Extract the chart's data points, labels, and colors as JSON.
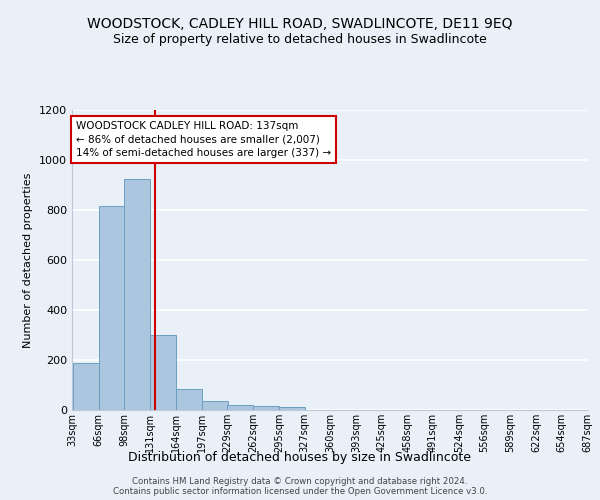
{
  "title": "WOODSTOCK, CADLEY HILL ROAD, SWADLINCOTE, DE11 9EQ",
  "subtitle": "Size of property relative to detached houses in Swadlincote",
  "xlabel": "Distribution of detached houses by size in Swadlincote",
  "ylabel": "Number of detached properties",
  "footnote1": "Contains HM Land Registry data © Crown copyright and database right 2024.",
  "footnote2": "Contains public sector information licensed under the Open Government Licence v3.0.",
  "bar_left_edges": [
    33,
    66,
    98,
    131,
    164,
    197,
    229,
    262,
    295,
    327,
    360,
    393,
    425,
    458,
    491,
    524,
    556,
    589,
    622,
    654
  ],
  "bar_heights": [
    190,
    815,
    925,
    300,
    85,
    38,
    22,
    18,
    12,
    0,
    0,
    0,
    0,
    0,
    0,
    0,
    0,
    0,
    0,
    0
  ],
  "bin_width": 33,
  "bar_color": "#adc6e0",
  "bar_edge_color": "#6a9fc0",
  "tick_labels": [
    "33sqm",
    "66sqm",
    "98sqm",
    "131sqm",
    "164sqm",
    "197sqm",
    "229sqm",
    "262sqm",
    "295sqm",
    "327sqm",
    "360sqm",
    "393sqm",
    "425sqm",
    "458sqm",
    "491sqm",
    "524sqm",
    "556sqm",
    "589sqm",
    "622sqm",
    "654sqm",
    "687sqm"
  ],
  "property_size": 137,
  "red_line_color": "#cc0000",
  "annotation_line1": "WOODSTOCK CADLEY HILL ROAD: 137sqm",
  "annotation_line2": "← 86% of detached houses are smaller (2,007)",
  "annotation_line3": "14% of semi-detached houses are larger (337) →",
  "annotation_box_color": "#ffffff",
  "annotation_border_color": "#cc0000",
  "ylim": [
    0,
    1200
  ],
  "yticks": [
    0,
    200,
    400,
    600,
    800,
    1000,
    1200
  ],
  "bg_color": "#eaf0f8",
  "plot_bg_color": "#eaf0f8",
  "grid_color": "#ffffff",
  "title_fontsize": 10,
  "subtitle_fontsize": 9,
  "ylabel_fontsize": 8,
  "xlabel_fontsize": 9,
  "tick_fontsize": 7,
  "ytick_fontsize": 8,
  "annotation_fontsize": 7.5
}
